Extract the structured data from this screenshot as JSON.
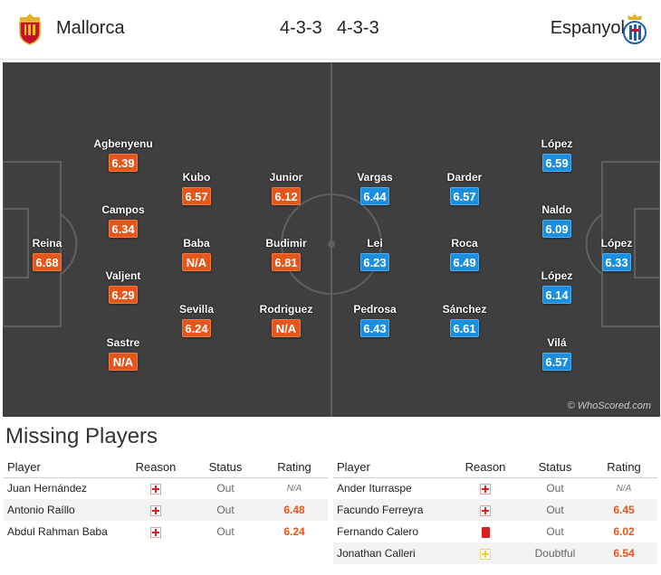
{
  "header": {
    "home_team": "Mallorca",
    "away_team": "Espanyol",
    "home_formation": "4-3-3",
    "away_formation": "4-3-3",
    "home_crest_icon": "mallorca-crest-icon",
    "away_crest_icon": "espanyol-crest-icon"
  },
  "colors": {
    "home_rating": "#e4561b",
    "away_rating": "#1c8ede",
    "pitch": "#3f3f3f"
  },
  "pitch": {
    "watermark": "© WhoScored.com",
    "home_players": [
      {
        "name": "Reina",
        "rating": "6.68"
      },
      {
        "name": "Agbenyenu",
        "rating": "6.39"
      },
      {
        "name": "Campos",
        "rating": "6.34"
      },
      {
        "name": "Valjent",
        "rating": "6.29"
      },
      {
        "name": "Sastre",
        "rating": "N/A"
      },
      {
        "name": "Kubo",
        "rating": "6.57"
      },
      {
        "name": "Baba",
        "rating": "N/A"
      },
      {
        "name": "Sevilla",
        "rating": "6.24"
      },
      {
        "name": "Junior",
        "rating": "6.12"
      },
      {
        "name": "Budimir",
        "rating": "6.81"
      },
      {
        "name": "Rodriguez",
        "rating": "N/A"
      }
    ],
    "away_players": [
      {
        "name": "Vargas",
        "rating": "6.44"
      },
      {
        "name": "Lei",
        "rating": "6.23"
      },
      {
        "name": "Pedrosa",
        "rating": "6.43"
      },
      {
        "name": "Darder",
        "rating": "6.57"
      },
      {
        "name": "Roca",
        "rating": "6.49"
      },
      {
        "name": "Sánchez",
        "rating": "6.61"
      },
      {
        "name": "López",
        "rating": "6.59"
      },
      {
        "name": "Naldo",
        "rating": "6.09"
      },
      {
        "name": "López",
        "rating": "6.14"
      },
      {
        "name": "Vilá",
        "rating": "6.57"
      },
      {
        "name": "López",
        "rating": "6.33"
      }
    ]
  },
  "missing": {
    "title": "Missing Players",
    "columns": {
      "player": "Player",
      "reason": "Reason",
      "status": "Status",
      "rating": "Rating"
    },
    "home": [
      {
        "player": "Juan Hernández",
        "reason": "injury",
        "status": "Out",
        "rating": "N/A"
      },
      {
        "player": "Antonio Raíllo",
        "reason": "injury",
        "status": "Out",
        "rating": "6.48"
      },
      {
        "player": "Abdul Rahman Baba",
        "reason": "injury",
        "status": "Out",
        "rating": "6.24"
      }
    ],
    "away": [
      {
        "player": "Ander Iturraspe",
        "reason": "injury",
        "status": "Out",
        "rating": "N/A"
      },
      {
        "player": "Facundo Ferreyra",
        "reason": "injury",
        "status": "Out",
        "rating": "6.45"
      },
      {
        "player": "Fernando Calero",
        "reason": "red-card",
        "status": "Out",
        "rating": "6.02"
      },
      {
        "player": "Jonathan Calleri",
        "reason": "doubtful",
        "status": "Doubtful",
        "rating": "6.54"
      }
    ]
  }
}
